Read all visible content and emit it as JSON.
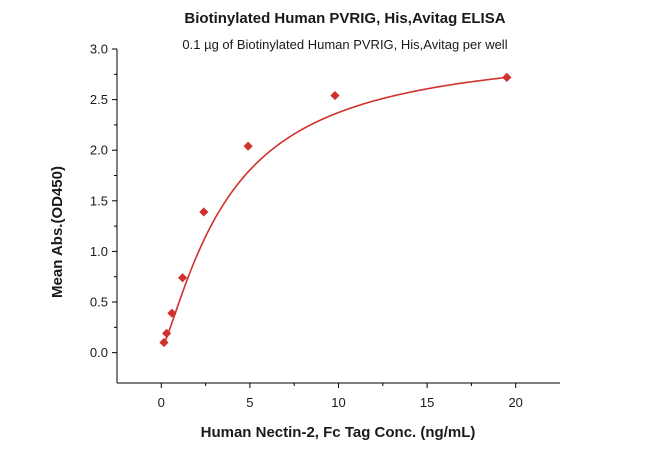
{
  "chart_data": {
    "type": "scatter",
    "title": "Biotinylated Human PVRIG, His,Avitag ELISA",
    "subtitle": "0.1 µg of Biotinylated Human PVRIG, His,Avitag per well",
    "xlabel": "Human Nectin-2, Fc Tag Conc. (ng/mL)",
    "ylabel": "Mean Abs.(OD450)",
    "xlim": [
      -2.5,
      22.5
    ],
    "ylim": [
      -0.3,
      3.0
    ],
    "x_ticks": [
      0,
      5,
      10,
      15,
      20
    ],
    "y_ticks": [
      0.0,
      0.5,
      1.0,
      1.5,
      2.0,
      2.5,
      3.0
    ],
    "x_tick_labels": [
      "0",
      "5",
      "10",
      "15",
      "20"
    ],
    "y_tick_labels": [
      "0.0",
      "0.5",
      "1.0",
      "1.5",
      "2.0",
      "2.5",
      "3.0"
    ],
    "grid": false,
    "series": [
      {
        "x": [
          0.15,
          0.3,
          0.6,
          1.2,
          2.4,
          4.9,
          9.8,
          19.5
        ],
        "y": [
          0.1,
          0.19,
          0.39,
          0.74,
          1.39,
          2.04,
          2.54,
          2.72
        ],
        "color": "#d0312d",
        "marker": "diamond",
        "fit": "four-parameter logistic"
      }
    ]
  }
}
